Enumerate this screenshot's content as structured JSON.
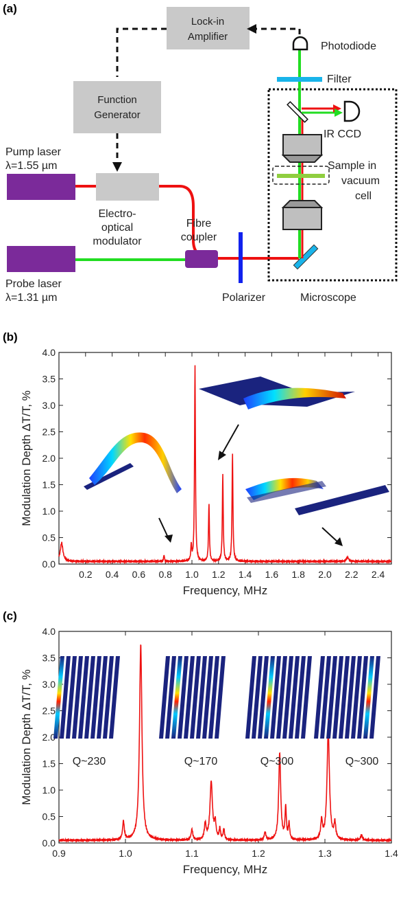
{
  "panel_labels": {
    "a": "(a)",
    "b": "(b)",
    "c": "(c)"
  },
  "diagram": {
    "lockin": [
      "Lock-in",
      "Amplifier"
    ],
    "function_generator": [
      "Function",
      "Generator"
    ],
    "pump": [
      "Pump laser",
      "λ=1.55 µm"
    ],
    "probe": [
      "Probe laser",
      "λ=1.31 µm"
    ],
    "eom": [
      "Electro-",
      "optical",
      "modulator"
    ],
    "coupler": [
      "Fibre",
      "coupler"
    ],
    "polarizer": "Polarizer",
    "microscope": "Microscope",
    "photodiode": "Photodiode",
    "filter": "Filter",
    "ir_ccd": "IR CCD",
    "sample": [
      "Sample in",
      "vacuum",
      "cell"
    ]
  },
  "colors": {
    "laser_box": "#7b2a9a",
    "pump_beam": "#ee1111",
    "probe_beam": "#22dd22",
    "box_gray": "#c9c9c9",
    "filter": "#19b4ea",
    "polarizer": "#1122ee",
    "sample": "#8fce3f",
    "curve": "#ee1111",
    "mode_blue": "#1a237e"
  },
  "chart_data": [
    {
      "type": "line",
      "panel": "(b)",
      "xlabel": "Frequency, MHz",
      "ylabel": "Modulation Depth ΔT/T, %",
      "xlim": [
        0.0,
        2.5
      ],
      "ylim": [
        0.0,
        4.0
      ],
      "xticks": [
        "0.2",
        "0.4",
        "0.6",
        "0.8",
        "1.0",
        "1.2",
        "1.4",
        "1.6",
        "1.8",
        "2.0",
        "2.2",
        "2.4"
      ],
      "yticks": [
        "0.0",
        "0.5",
        "1.0",
        "1.5",
        "2.0",
        "2.5",
        "3.0",
        "3.5",
        "4.0"
      ],
      "baseline": 0.05,
      "peaks": [
        {
          "x": 0.02,
          "y": 0.35,
          "w": 0.012
        },
        {
          "x": 0.79,
          "y": 0.12,
          "w": 0.004
        },
        {
          "x": 0.995,
          "y": 0.3,
          "w": 0.004
        },
        {
          "x": 1.023,
          "y": 3.7,
          "w": 0.004
        },
        {
          "x": 1.128,
          "y": 1.1,
          "w": 0.004
        },
        {
          "x": 1.232,
          "y": 1.65,
          "w": 0.004
        },
        {
          "x": 1.305,
          "y": 2.05,
          "w": 0.004
        },
        {
          "x": 2.17,
          "y": 0.08,
          "w": 0.01
        }
      ]
    },
    {
      "type": "line",
      "panel": "(c)",
      "xlabel": "Frequency, MHz",
      "ylabel": "Modulation Depth ΔT/T, %",
      "xlim": [
        0.9,
        1.4
      ],
      "ylim": [
        0.0,
        4.0
      ],
      "xticks": [
        "0.9",
        "1.0",
        "1.1",
        "1.2",
        "1.3",
        "1.4"
      ],
      "yticks": [
        "0.0",
        "0.5",
        "1.0",
        "1.5",
        "2.0",
        "2.5",
        "3.0",
        "3.5",
        "4.0"
      ],
      "baseline": 0.05,
      "peaks": [
        {
          "x": 0.997,
          "y": 0.35,
          "w": 0.0015
        },
        {
          "x": 1.023,
          "y": 3.7,
          "w": 0.0022
        },
        {
          "x": 1.1,
          "y": 0.2,
          "w": 0.0015
        },
        {
          "x": 1.12,
          "y": 0.3,
          "w": 0.0015
        },
        {
          "x": 1.129,
          "y": 1.1,
          "w": 0.0022
        },
        {
          "x": 1.135,
          "y": 0.3,
          "w": 0.0015
        },
        {
          "x": 1.142,
          "y": 0.2,
          "w": 0.0012
        },
        {
          "x": 1.148,
          "y": 0.2,
          "w": 0.0012
        },
        {
          "x": 1.21,
          "y": 0.15,
          "w": 0.0015
        },
        {
          "x": 1.232,
          "y": 1.65,
          "w": 0.0018
        },
        {
          "x": 1.241,
          "y": 0.6,
          "w": 0.0012
        },
        {
          "x": 1.246,
          "y": 0.3,
          "w": 0.0012
        },
        {
          "x": 1.295,
          "y": 0.35,
          "w": 0.0015
        },
        {
          "x": 1.305,
          "y": 2.05,
          "w": 0.0022
        },
        {
          "x": 1.315,
          "y": 0.3,
          "w": 0.0015
        },
        {
          "x": 1.355,
          "y": 0.1,
          "w": 0.0015
        }
      ],
      "annotations": [
        "Q~230",
        "Q~170",
        "Q~300",
        "Q~300"
      ]
    }
  ]
}
